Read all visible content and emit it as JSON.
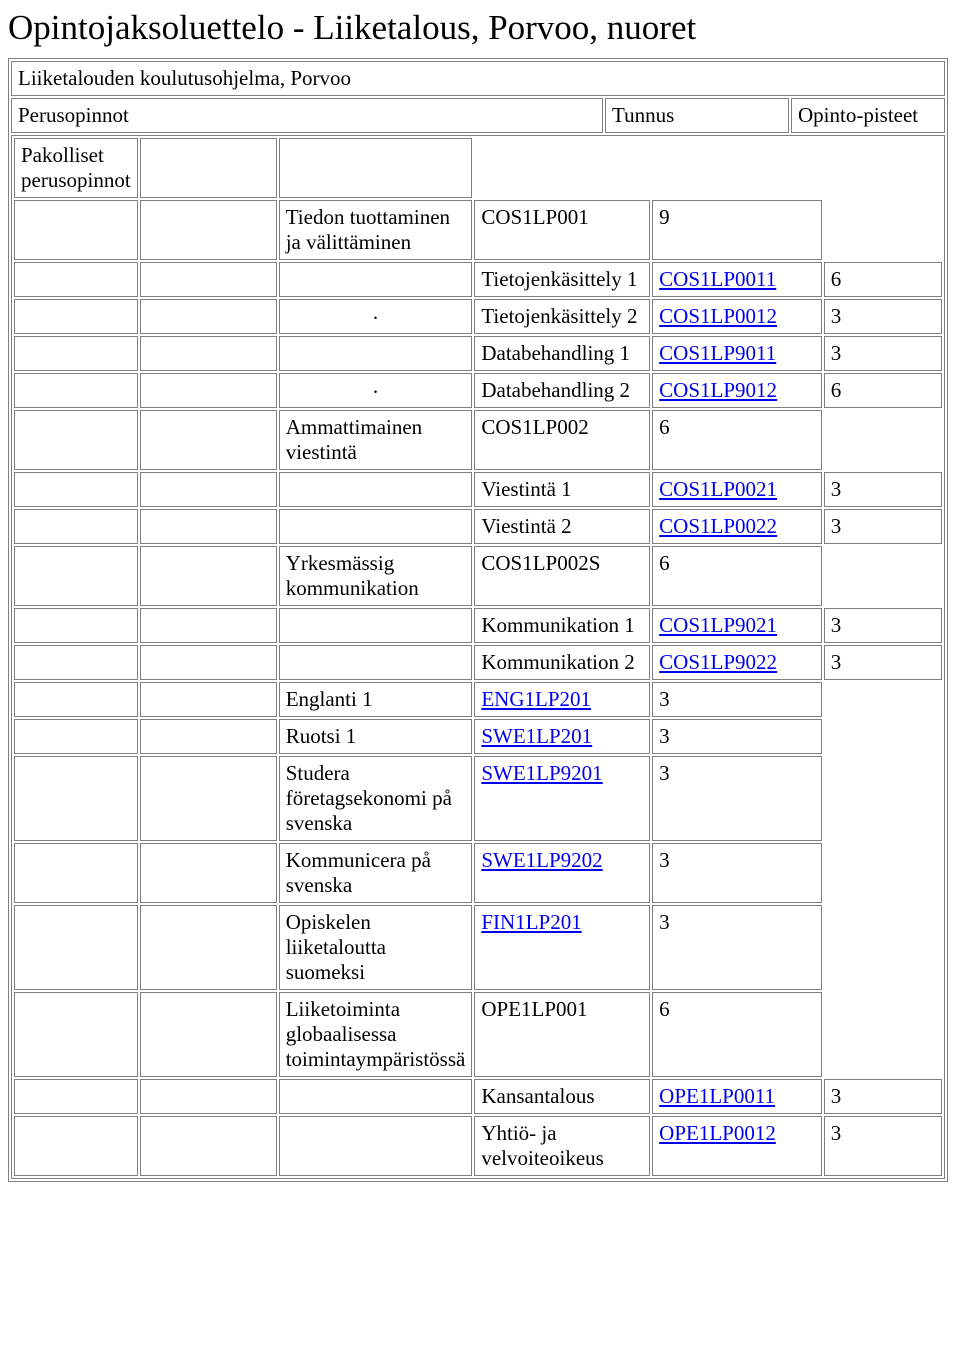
{
  "page": {
    "title": "Opintojaksoluettelo - Liiketalous, Porvoo, nuoret",
    "subtitle": "Liiketalouden koulutusohjelma, Porvoo",
    "headers": {
      "col1": "Perusopinnot",
      "col2": "Tunnus",
      "col3": "Opinto-pisteet"
    },
    "section_title": "Pakolliset perusopinnot",
    "rows": [
      {
        "indent": 1,
        "dot": "",
        "label": "Tiedon tuottaminen ja välittäminen",
        "code": "COS1LP001",
        "link": false,
        "pts": "9"
      },
      {
        "indent": 2,
        "dot": "",
        "label": "Tietojenkäsittely 1",
        "code": "COS1LP0011",
        "link": true,
        "pts": "6"
      },
      {
        "indent": 2,
        "dot": ".",
        "label": "Tietojenkäsittely 2",
        "code": "COS1LP0012",
        "link": true,
        "pts": "3"
      },
      {
        "indent": 2,
        "dot": "",
        "label": "Databehandling 1",
        "code": "COS1LP9011",
        "link": true,
        "pts": "3"
      },
      {
        "indent": 2,
        "dot": ".",
        "label": "Databehandling 2",
        "code": "COS1LP9012",
        "link": true,
        "pts": "6"
      },
      {
        "indent": 1,
        "dot": "",
        "label": "Ammattimainen viestintä",
        "code": "COS1LP002",
        "link": false,
        "pts": "6"
      },
      {
        "indent": 2,
        "dot": "",
        "label": "Viestintä 1",
        "code": "COS1LP0021",
        "link": true,
        "pts": "3"
      },
      {
        "indent": 2,
        "dot": "",
        "label": "Viestintä 2",
        "code": "COS1LP0022",
        "link": true,
        "pts": "3"
      },
      {
        "indent": 1,
        "dot": "",
        "label": "Yrkesmässig kommunikation",
        "code": "COS1LP002S",
        "link": false,
        "pts": "6"
      },
      {
        "indent": 2,
        "dot": "",
        "label": "Kommunikation 1",
        "code": "COS1LP9021",
        "link": true,
        "pts": "3"
      },
      {
        "indent": 2,
        "dot": "",
        "label": "Kommunikation 2",
        "code": "COS1LP9022",
        "link": true,
        "pts": "3"
      },
      {
        "indent": 1,
        "dot": "",
        "label": "Englanti 1",
        "code": "ENG1LP201",
        "link": true,
        "pts": "3"
      },
      {
        "indent": 1,
        "dot": "",
        "label": "Ruotsi 1",
        "code": "SWE1LP201",
        "link": true,
        "pts": "3"
      },
      {
        "indent": 1,
        "dot": "",
        "label": "Studera företagsekonomi på svenska",
        "code": "SWE1LP9201",
        "link": true,
        "pts": "3"
      },
      {
        "indent": 1,
        "dot": "",
        "label": "Kommunicera på svenska",
        "code": "SWE1LP9202",
        "link": true,
        "pts": "3"
      },
      {
        "indent": 1,
        "dot": "",
        "label": "Opiskelen liiketaloutta suomeksi",
        "code": "FIN1LP201",
        "link": true,
        "pts": "3"
      },
      {
        "indent": 1,
        "dot": "",
        "label": "Liiketoiminta globaalisessa toimintaympäristössä",
        "code": "OPE1LP001",
        "link": false,
        "pts": "6"
      },
      {
        "indent": 2,
        "dot": "",
        "label": "Kansantalous",
        "code": "OPE1LP0011",
        "link": true,
        "pts": "3"
      },
      {
        "indent": 2,
        "dot": "",
        "label": "Yhtiö- ja velvoiteoikeus",
        "code": "OPE1LP0012",
        "link": true,
        "pts": "3"
      }
    ]
  },
  "style": {
    "link_color": "#0000ee",
    "border_color": "#808080",
    "background": "#ffffff",
    "heading_fontsize": 35,
    "cell_fontsize": 21
  }
}
